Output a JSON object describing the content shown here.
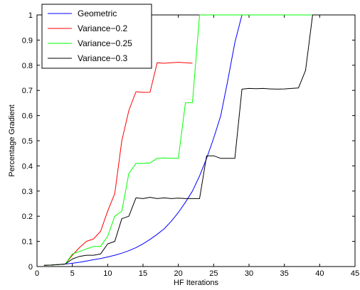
{
  "chart_data": {
    "type": "line",
    "xlabel": "HF Iterations",
    "ylabel": "Percentage Gradient",
    "xlim": [
      0,
      45
    ],
    "ylim": [
      0,
      1
    ],
    "xticks": [
      0,
      5,
      10,
      15,
      20,
      25,
      30,
      35,
      40,
      45
    ],
    "yticks": [
      0,
      0.1,
      0.2,
      0.3,
      0.4,
      0.5,
      0.6,
      0.7,
      0.8,
      0.9,
      1
    ],
    "grid": false,
    "legend_position": "top-left",
    "series": [
      {
        "name": "Geometric",
        "color": "#0000ff",
        "x": [
          1,
          2,
          3,
          4,
          5,
          6,
          7,
          8,
          9,
          10,
          11,
          12,
          13,
          14,
          15,
          16,
          17,
          18,
          19,
          20,
          21,
          22,
          23,
          24,
          25,
          26,
          27,
          28,
          29,
          30,
          35,
          40,
          45
        ],
        "y": [
          0.005,
          0.006,
          0.008,
          0.01,
          0.013,
          0.017,
          0.022,
          0.027,
          0.032,
          0.038,
          0.045,
          0.053,
          0.063,
          0.075,
          0.09,
          0.108,
          0.128,
          0.15,
          0.18,
          0.215,
          0.255,
          0.3,
          0.36,
          0.43,
          0.51,
          0.6,
          0.74,
          0.89,
          1.0,
          1.0,
          1.0,
          1.0,
          1.0
        ]
      },
      {
        "name": "Variance−0.2",
        "color": "#ff0000",
        "x": [
          1,
          2,
          3,
          4,
          5,
          6,
          7,
          8,
          9,
          10,
          11,
          12,
          13,
          14,
          15,
          16,
          17,
          18,
          19,
          20,
          21,
          22
        ],
        "y": [
          0.005,
          0.006,
          0.008,
          0.01,
          0.045,
          0.075,
          0.1,
          0.11,
          0.14,
          0.22,
          0.29,
          0.5,
          0.62,
          0.695,
          0.692,
          0.693,
          0.81,
          0.808,
          0.81,
          0.812,
          0.81,
          0.808
        ]
      },
      {
        "name": "Variance−0.25",
        "color": "#00ff00",
        "x": [
          1,
          2,
          3,
          4,
          5,
          6,
          7,
          8,
          9,
          10,
          11,
          12,
          13,
          14,
          15,
          16,
          17,
          18,
          19,
          20,
          21,
          22,
          23,
          24,
          30,
          35,
          40,
          45
        ],
        "y": [
          0.005,
          0.006,
          0.008,
          0.01,
          0.05,
          0.06,
          0.07,
          0.08,
          0.08,
          0.12,
          0.2,
          0.22,
          0.37,
          0.41,
          0.41,
          0.412,
          0.43,
          0.432,
          0.43,
          0.43,
          0.65,
          0.652,
          1.0,
          1.0,
          1.0,
          1.0,
          1.0,
          1.0
        ]
      },
      {
        "name": "Variance−0.3",
        "color": "#000000",
        "x": [
          1,
          2,
          3,
          4,
          5,
          6,
          7,
          8,
          9,
          10,
          11,
          12,
          13,
          14,
          15,
          16,
          17,
          18,
          19,
          20,
          21,
          22,
          23,
          24,
          25,
          26,
          27,
          28,
          29,
          30,
          31,
          32,
          33,
          34,
          35,
          36,
          37,
          38,
          39,
          40,
          45
        ],
        "y": [
          0.005,
          0.006,
          0.008,
          0.01,
          0.03,
          0.04,
          0.045,
          0.045,
          0.05,
          0.09,
          0.1,
          0.19,
          0.2,
          0.273,
          0.27,
          0.275,
          0.27,
          0.273,
          0.27,
          0.272,
          0.27,
          0.27,
          0.27,
          0.44,
          0.44,
          0.43,
          0.43,
          0.43,
          0.705,
          0.708,
          0.707,
          0.708,
          0.706,
          0.705,
          0.706,
          0.708,
          0.71,
          0.78,
          1.0,
          1.0,
          1.0
        ]
      }
    ]
  }
}
